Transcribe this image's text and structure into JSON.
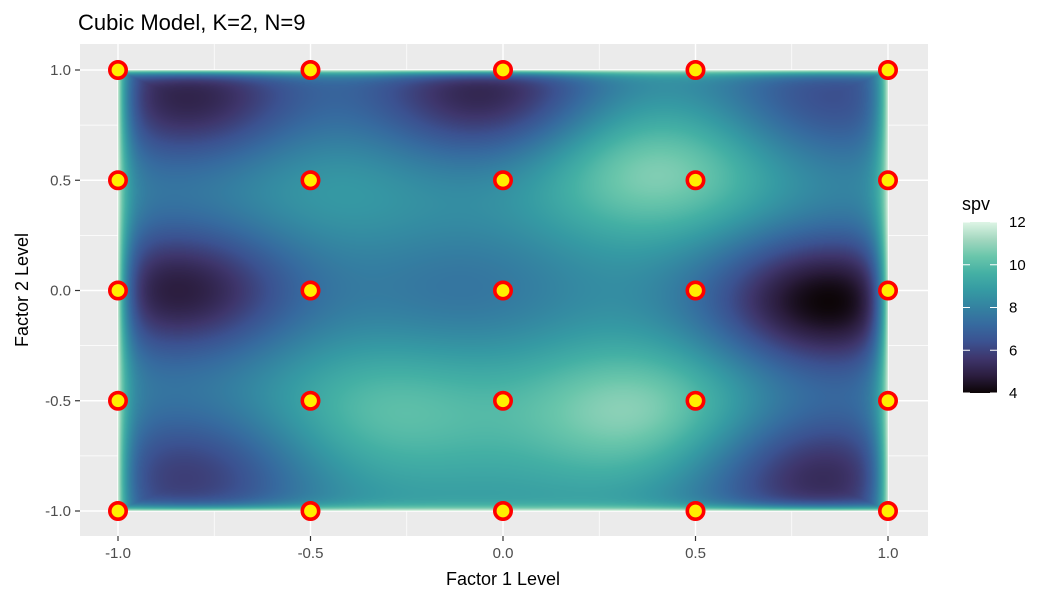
{
  "chart_data": {
    "type": "heatmap",
    "title": "Cubic Model, K=2, N=9",
    "xlabel": "Factor 1 Level",
    "ylabel": "Factor 2 Level",
    "xlim": [
      -1.0,
      1.0
    ],
    "ylim": [
      -1.0,
      1.0
    ],
    "x_ticks": [
      -1.0,
      -0.5,
      0.0,
      0.5,
      1.0
    ],
    "y_ticks": [
      -1.0,
      -0.5,
      0.0,
      0.5,
      1.0
    ],
    "x_tick_labels": [
      "-1.0",
      "-0.5",
      "0.0",
      "0.5",
      "1.0"
    ],
    "y_tick_labels": [
      "-1.0",
      "-0.5",
      "0.0",
      "0.5",
      "1.0"
    ],
    "grid": true,
    "legend": {
      "title": "spv",
      "placement": "right",
      "range": [
        4,
        12
      ],
      "ticks": [
        4,
        6,
        8,
        10,
        12
      ],
      "tick_labels": [
        "4",
        "6",
        "8",
        "10",
        "12"
      ],
      "colormap": [
        "#0b0405",
        "#2b1d3e",
        "#3e356b",
        "#3b5291",
        "#366a9f",
        "#3482a1",
        "#359aa3",
        "#44b0a4",
        "#6ac6ab",
        "#a4d8c0",
        "#def5e5"
      ]
    },
    "heat_features": [
      {
        "x": -0.82,
        "y": 0.88,
        "spv": 5.0
      },
      {
        "x": -0.05,
        "y": 0.9,
        "spv": 5.0
      },
      {
        "x": 0.85,
        "y": 0.88,
        "spv": 6.2
      },
      {
        "x": -0.85,
        "y": 0.0,
        "spv": 4.8
      },
      {
        "x": 0.85,
        "y": -0.05,
        "spv": 4.0
      },
      {
        "x": -0.82,
        "y": -0.85,
        "spv": 5.8
      },
      {
        "x": 0.82,
        "y": -0.85,
        "spv": 5.2
      },
      {
        "x": 0.4,
        "y": 0.55,
        "spv": 11.0
      },
      {
        "x": 0.35,
        "y": -0.55,
        "spv": 11.0
      },
      {
        "x": -0.3,
        "y": -0.55,
        "spv": 10.2
      },
      {
        "x": -0.45,
        "y": 0.5,
        "spv": 9.2
      },
      {
        "x": -0.1,
        "y": 0.0,
        "spv": 7.5
      }
    ],
    "baseline_spv": 8.6,
    "design_points": {
      "x": [
        -1.0,
        -1.0,
        -1.0,
        -1.0,
        -1.0,
        -0.5,
        -0.5,
        -0.5,
        -0.5,
        -0.5,
        0.0,
        0.0,
        0.0,
        0.0,
        0.0,
        0.5,
        0.5,
        0.5,
        0.5,
        0.5,
        1.0,
        1.0,
        1.0,
        1.0,
        1.0
      ],
      "y": [
        -1.0,
        -0.5,
        0.0,
        0.5,
        1.0,
        -1.0,
        -0.5,
        0.0,
        0.5,
        1.0,
        -1.0,
        -0.5,
        0.0,
        0.5,
        1.0,
        -1.0,
        -0.5,
        0.0,
        0.5,
        1.0,
        -1.0,
        -0.5,
        0.0,
        0.5,
        1.0
      ],
      "fill_color": "#ffee00",
      "stroke_color": "#ff0000"
    },
    "colors": {
      "panel_background": "#ebebeb",
      "grid_major": "#ffffff"
    }
  }
}
